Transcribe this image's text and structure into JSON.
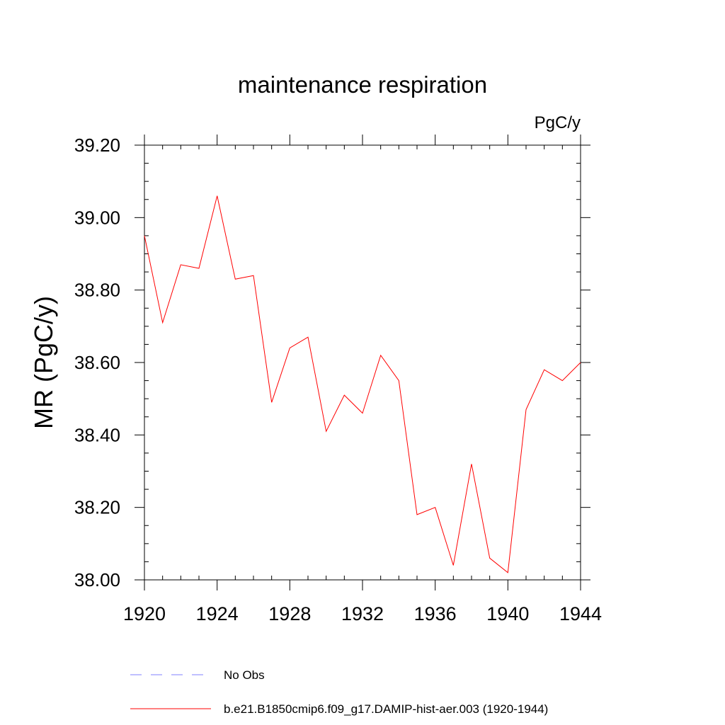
{
  "chart_data": {
    "type": "line",
    "title": "maintenance respiration",
    "units": "PgC/y",
    "ylabel": "MR  (PgC/y)",
    "xlabel": "",
    "xlim": [
      1920,
      1944
    ],
    "ylim": [
      38.0,
      39.2
    ],
    "xticks": [
      1920,
      1924,
      1928,
      1932,
      1936,
      1940,
      1944
    ],
    "yticks": [
      "38.00",
      "38.20",
      "38.40",
      "38.60",
      "38.80",
      "39.00",
      "39.20"
    ],
    "grid": false,
    "legend_position": "bottom",
    "series": [
      {
        "name": "b.e21.B1850cmip6.f09_g17.DAMIP-hist-aer.003 (1920-1944)",
        "color": "#ff0000",
        "style": "solid",
        "x": [
          1920,
          1921,
          1922,
          1923,
          1924,
          1925,
          1926,
          1927,
          1928,
          1929,
          1930,
          1931,
          1932,
          1933,
          1934,
          1935,
          1936,
          1937,
          1938,
          1939,
          1940,
          1941,
          1942,
          1943,
          1944
        ],
        "values": [
          38.95,
          38.71,
          38.87,
          38.86,
          39.06,
          38.83,
          38.84,
          38.49,
          38.64,
          38.67,
          38.41,
          38.51,
          38.46,
          38.62,
          38.55,
          38.18,
          38.2,
          38.04,
          38.32,
          38.06,
          38.02,
          38.47,
          38.58,
          38.55,
          38.6
        ]
      }
    ],
    "legend": [
      {
        "label": "No Obs",
        "color": "#8080ff",
        "style": "dashed"
      },
      {
        "label": "b.e21.B1850cmip6.f09_g17.DAMIP-hist-aer.003 (1920-1944)",
        "color": "#ff0000",
        "style": "solid"
      }
    ]
  }
}
